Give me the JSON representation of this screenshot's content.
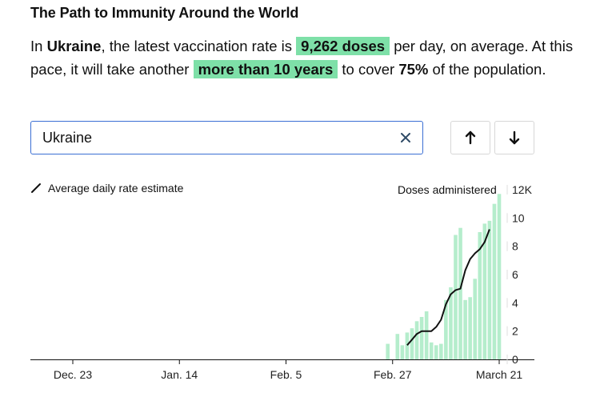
{
  "title": "The Path to Immunity Around the World",
  "summary": {
    "p1": "In ",
    "country": "Ukraine",
    "p2": ", the latest vaccination rate is ",
    "rate": "9,262 doses",
    "p3": " per day, on average. At this pace, it will take another ",
    "time": "more than 10 years",
    "p4": " to cover ",
    "coverage": "75%",
    "p5": " of the population."
  },
  "search": {
    "value": "Ukraine"
  },
  "icons": {
    "clear": "close-icon",
    "up": "arrow-up-icon",
    "down": "arrow-down-icon"
  },
  "colors": {
    "bar": "#b5edcc",
    "line": "#111111",
    "highlight": "#7ee0a8",
    "input_border": "#3b6fd4"
  },
  "chart_data": {
    "type": "bar",
    "ylabel": "Doses administered",
    "legend": "Average daily rate estimate",
    "yticks": [
      "12K",
      "10",
      "8",
      "6",
      "4",
      "2",
      "0"
    ],
    "ytick_values": [
      12000,
      10000,
      8000,
      6000,
      4000,
      2000,
      0
    ],
    "ylim": [
      0,
      12000
    ],
    "xticks": [
      {
        "label": "Dec. 23",
        "day": 0
      },
      {
        "label": "Jan. 14",
        "day": 22
      },
      {
        "label": "Feb. 5",
        "day": 44
      },
      {
        "label": "Feb. 27",
        "day": 66
      },
      {
        "label": "March 21",
        "day": 88
      }
    ],
    "bars": [
      {
        "day": 65,
        "value": 1100
      },
      {
        "day": 67,
        "value": 1800
      },
      {
        "day": 68,
        "value": 1000
      },
      {
        "day": 69,
        "value": 1900
      },
      {
        "day": 70,
        "value": 2200
      },
      {
        "day": 71,
        "value": 2700
      },
      {
        "day": 72,
        "value": 3000
      },
      {
        "day": 73,
        "value": 3400
      },
      {
        "day": 74,
        "value": 1200
      },
      {
        "day": 75,
        "value": 1000
      },
      {
        "day": 76,
        "value": 1100
      },
      {
        "day": 77,
        "value": 4200
      },
      {
        "day": 78,
        "value": 5100
      },
      {
        "day": 79,
        "value": 8800
      },
      {
        "day": 80,
        "value": 9300
      },
      {
        "day": 81,
        "value": 4200
      },
      {
        "day": 82,
        "value": 4400
      },
      {
        "day": 83,
        "value": 5700
      },
      {
        "day": 84,
        "value": 9000
      },
      {
        "day": 85,
        "value": 9600
      },
      {
        "day": 86,
        "value": 9800
      },
      {
        "day": 87,
        "value": 11000
      },
      {
        "day": 88,
        "value": 11700
      }
    ],
    "line": [
      {
        "day": 69,
        "value": 1000
      },
      {
        "day": 70,
        "value": 1400
      },
      {
        "day": 71,
        "value": 1800
      },
      {
        "day": 72,
        "value": 2000
      },
      {
        "day": 73,
        "value": 2000
      },
      {
        "day": 74,
        "value": 2000
      },
      {
        "day": 75,
        "value": 2300
      },
      {
        "day": 76,
        "value": 2800
      },
      {
        "day": 77,
        "value": 3900
      },
      {
        "day": 78,
        "value": 4600
      },
      {
        "day": 79,
        "value": 4900
      },
      {
        "day": 80,
        "value": 5000
      },
      {
        "day": 81,
        "value": 6300
      },
      {
        "day": 82,
        "value": 7100
      },
      {
        "day": 83,
        "value": 7500
      },
      {
        "day": 84,
        "value": 7800
      },
      {
        "day": 85,
        "value": 8300
      },
      {
        "day": 86,
        "value": 9200
      }
    ]
  }
}
